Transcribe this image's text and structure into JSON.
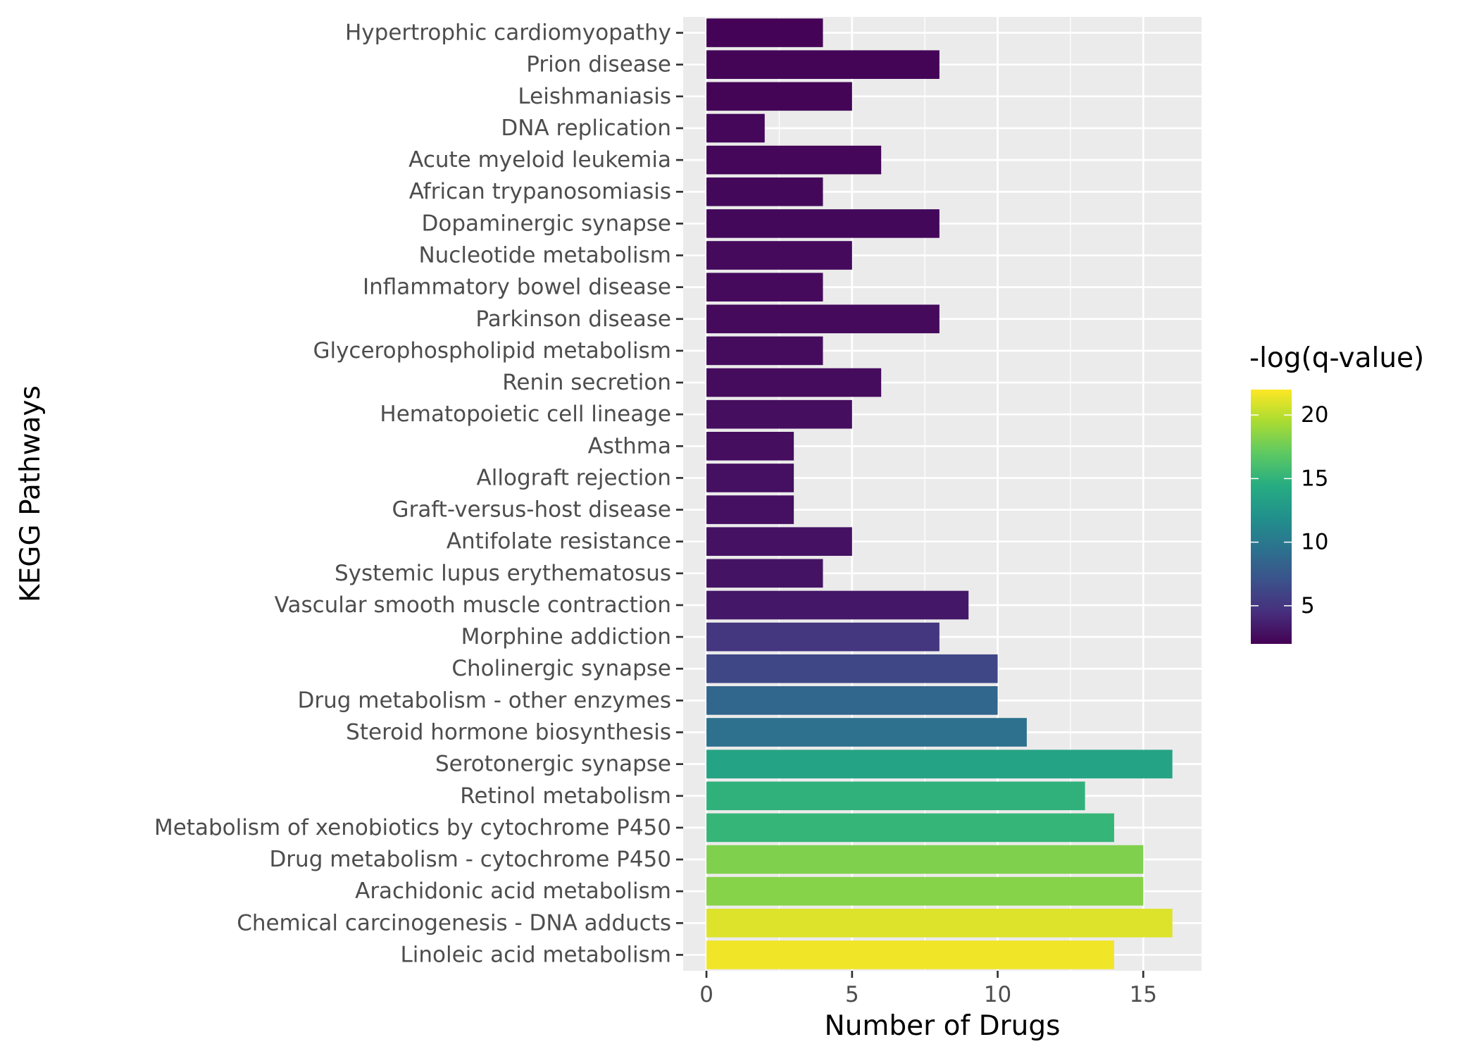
{
  "chart_data": {
    "type": "bar",
    "orientation": "horizontal",
    "xlabel": "Number of Drugs",
    "ylabel": "KEGG Pathways",
    "xlim": [
      -0.8,
      17.0
    ],
    "xticks": [
      0,
      5,
      10,
      15
    ],
    "grid": true,
    "categories": [
      "Hypertrophic cardiomyopathy",
      "Prion disease",
      "Leishmaniasis",
      "DNA replication",
      "Acute myeloid leukemia",
      "African trypanosomiasis",
      "Dopaminergic synapse",
      "Nucleotide metabolism",
      "Inflammatory bowel disease",
      "Parkinson disease",
      "Glycerophospholipid metabolism",
      "Renin secretion",
      "Hematopoietic cell lineage",
      "Asthma",
      "Allograft rejection",
      "Graft-versus-host disease",
      "Antifolate resistance",
      "Systemic lupus erythematosus",
      "Vascular smooth muscle contraction",
      "Morphine addiction",
      "Cholinergic synapse",
      "Drug metabolism - other enzymes",
      "Steroid hormone biosynthesis",
      "Serotonergic synapse",
      "Retinol metabolism",
      "Metabolism of xenobiotics by cytochrome P450",
      "Drug metabolism - cytochrome P450",
      "Arachidonic acid metabolism",
      "Chemical carcinogenesis - DNA adducts",
      "Linoleic acid metabolism"
    ],
    "values": [
      4,
      8,
      5,
      2,
      6,
      4,
      8,
      5,
      4,
      8,
      4,
      6,
      5,
      3,
      3,
      3,
      5,
      4,
      9,
      8,
      10,
      10,
      11,
      16,
      13,
      14,
      15,
      15,
      16,
      14
    ],
    "neg_log_q": [
      2.1,
      2.2,
      2.2,
      2.3,
      2.3,
      2.4,
      2.4,
      2.5,
      2.5,
      2.5,
      2.6,
      2.6,
      2.7,
      2.7,
      2.8,
      2.8,
      2.9,
      3.0,
      3.2,
      5.0,
      6.2,
      8.6,
      9.4,
      13.6,
      14.9,
      15.2,
      18.1,
      18.3,
      21.0,
      21.6
    ],
    "legend": {
      "title": "-log(q-value)",
      "placement": "right",
      "range": [
        2.0,
        22.0
      ],
      "ticks": [
        5,
        10,
        15,
        20
      ],
      "palette": [
        "#440154",
        "#472f7d",
        "#3b528b",
        "#2c728e",
        "#21918c",
        "#27ad81",
        "#5ec962",
        "#aadc32",
        "#fde725"
      ]
    },
    "colors": {
      "panel_background": "#ebebeb",
      "grid_line": "#ffffff",
      "axis_text": "#4d4d4d",
      "tick_mark": "#333333"
    }
  }
}
